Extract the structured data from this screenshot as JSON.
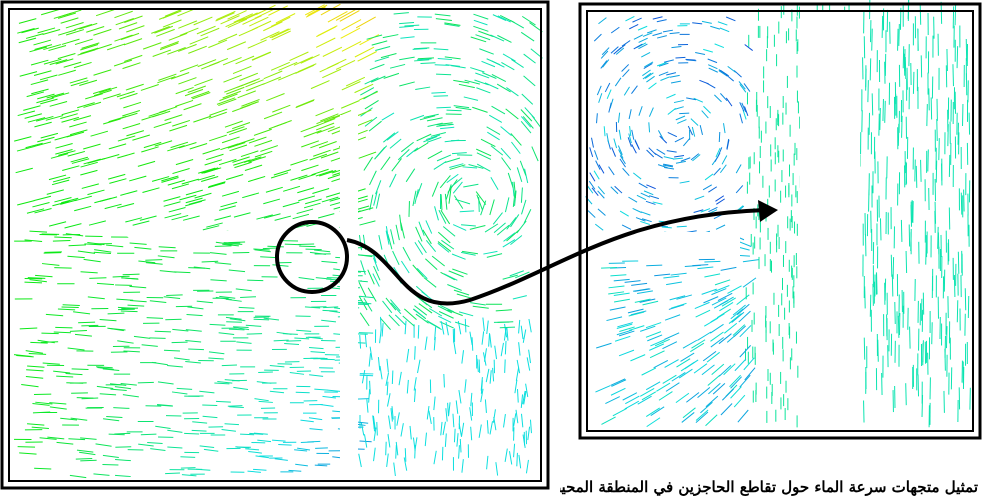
{
  "caption": "تمثيل متجهات سرعة الماء حول تقاطع الحاجزين في المنطقة المحيطة"
}
